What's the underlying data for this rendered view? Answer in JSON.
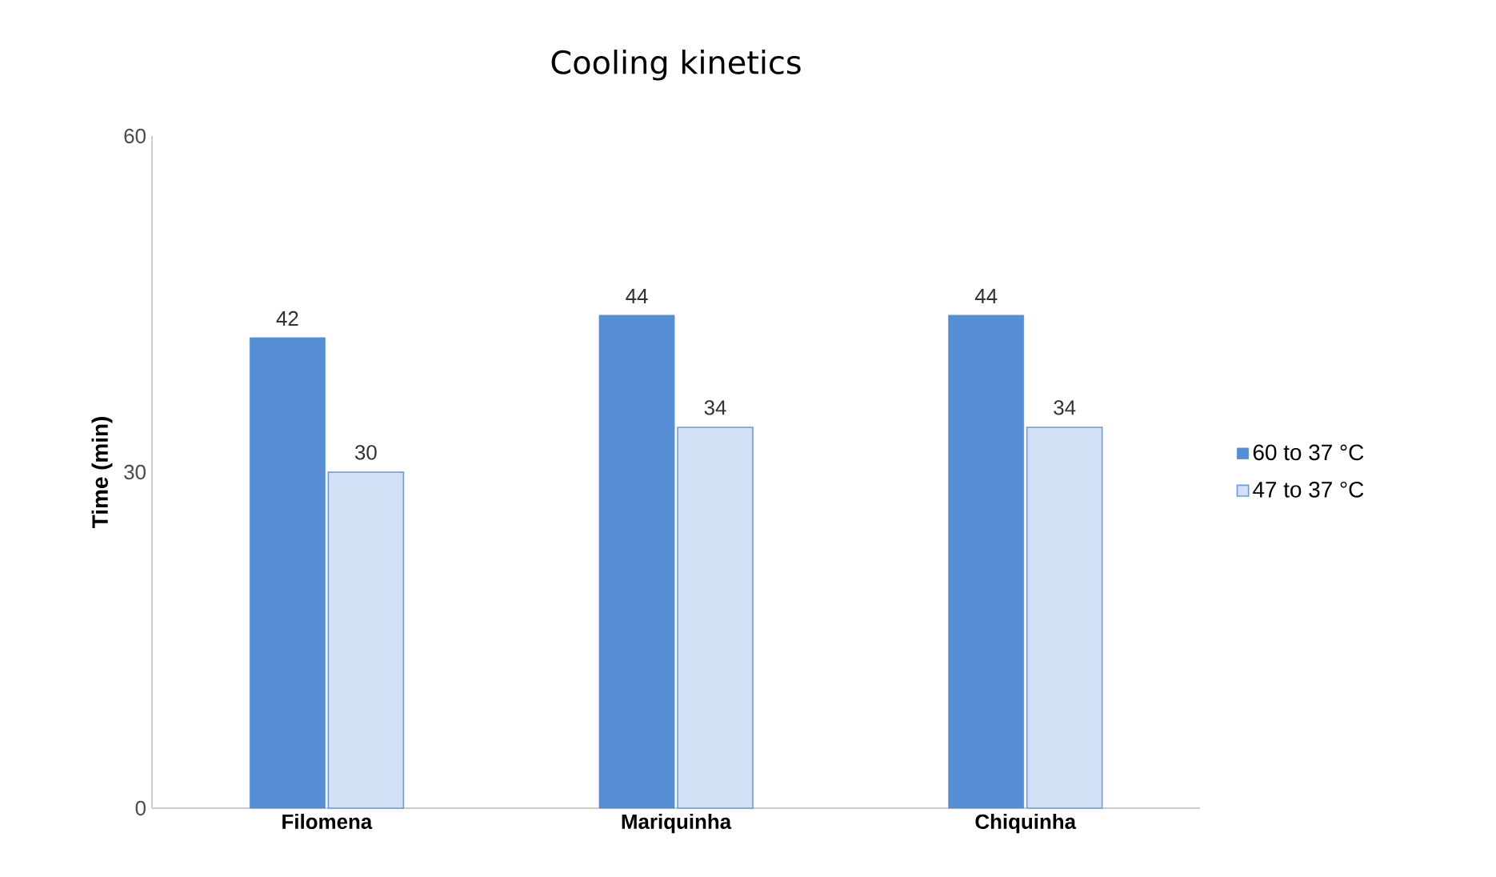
{
  "chart_data": {
    "type": "bar",
    "title": "Cooling kinetics",
    "ylabel": "Time (min)",
    "categories": [
      "Filomena",
      "Mariquinha",
      "Chiquinha"
    ],
    "series": [
      {
        "name": "60 to 37 °C",
        "color": "#558ed5",
        "values": [
          42,
          44,
          44
        ]
      },
      {
        "name": "47 to 37 °C",
        "color": "#6a9be0",
        "values": [
          30,
          34,
          34
        ]
      }
    ],
    "ylim": [
      0,
      60
    ],
    "yticks": [
      0,
      30,
      60
    ],
    "grid": false,
    "legend": "right",
    "data_labels": true
  }
}
